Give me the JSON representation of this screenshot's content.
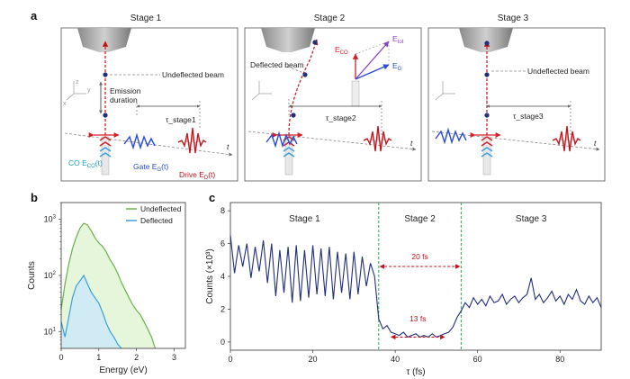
{
  "panel_a": {
    "letter": "a",
    "stages": [
      {
        "title": "Stage 1",
        "tau_label": "τ_stage1"
      },
      {
        "title": "Stage 2",
        "tau_label": "τ_stage2"
      },
      {
        "title": "Stage 3",
        "tau_label": "τ_stage3"
      }
    ],
    "labels": {
      "undeflected_beam": "Undeflected beam",
      "deflected_beam": "Deflected beam",
      "emission_duration_1": "Emission",
      "emission_duration_2": "duration",
      "co_label": "CO E",
      "co_sub": "CO",
      "co_arg": "(t)",
      "gate_label": "Gate E",
      "gate_sub": "G",
      "gate_arg": "(t)",
      "drive_label": "Drive E",
      "drive_sub": "D",
      "drive_arg": "(t)",
      "t": "t",
      "e_co": "E",
      "e_co_sub": "CO",
      "e_tot": "E",
      "e_tot_sub": "tot",
      "e_g": "E",
      "e_g_sub": "G",
      "axis_z": "z",
      "axis_y": "y",
      "axis_x": "x"
    }
  },
  "panel_b": {
    "letter": "b",
    "legend": [
      "Undeflected",
      "Deflected"
    ],
    "xlabel": "Energy (eV)",
    "ylabel": "Counts",
    "xticks": [
      "0",
      "1",
      "2",
      "3"
    ],
    "yticks_base": "10",
    "yticks_exp": [
      "3",
      "2",
      "1"
    ]
  },
  "panel_c": {
    "letter": "c",
    "stage_labels": [
      "Stage 1",
      "Stage 2",
      "Stage 3"
    ],
    "annotation_20": "20 fs",
    "annotation_13": "13 fs",
    "xlabel": "τ (fs)",
    "ylabel": "Counts (×10³)",
    "xticks": [
      "0",
      "20",
      "40",
      "60",
      "80"
    ],
    "yticks": [
      "0",
      "2",
      "4",
      "6",
      "8"
    ]
  },
  "colors": {
    "undeflected": "#6ab04c",
    "undeflected_fill": "#e3f5d6",
    "deflected": "#3aa0d8",
    "deflected_fill": "#cdeaf6",
    "trace": "#1f2f7a",
    "dashed_green": "#2aa85a",
    "annot_red": "#c0141c"
  },
  "chart_data": [
    {
      "type": "area",
      "title": "",
      "xlabel": "Energy (eV)",
      "ylabel": "Counts",
      "xlim": [
        0,
        3.3
      ],
      "ylim": [
        5,
        2000
      ],
      "yscale": "log",
      "legend_position": "top-right",
      "series": [
        {
          "name": "Undeflected",
          "x": [
            0.0,
            0.1,
            0.2,
            0.3,
            0.4,
            0.5,
            0.6,
            0.7,
            0.8,
            0.9,
            1.0,
            1.1,
            1.2,
            1.3,
            1.4,
            1.5,
            1.6,
            1.7,
            1.8,
            1.9,
            2.0,
            2.1,
            2.2,
            2.3,
            2.4,
            2.5
          ],
          "y": [
            25,
            70,
            160,
            300,
            480,
            700,
            850,
            800,
            620,
            470,
            380,
            330,
            260,
            190,
            150,
            110,
            75,
            55,
            40,
            30,
            24,
            20,
            15,
            11,
            8,
            5
          ]
        },
        {
          "name": "Deflected",
          "x": [
            0.0,
            0.1,
            0.2,
            0.3,
            0.4,
            0.5,
            0.6,
            0.7,
            0.8,
            0.9,
            1.0,
            1.1,
            1.2,
            1.3,
            1.4,
            1.5,
            1.6
          ],
          "y": [
            15,
            8,
            18,
            40,
            65,
            80,
            100,
            70,
            50,
            40,
            32,
            22,
            14,
            10,
            8,
            6,
            5
          ]
        }
      ]
    },
    {
      "type": "line",
      "title": "",
      "xlabel": "τ (fs)",
      "ylabel": "Counts (×10³)",
      "xlim": [
        0,
        90
      ],
      "ylim": [
        -0.5,
        8.5
      ],
      "vlines": [
        36,
        56
      ],
      "series": [
        {
          "name": "",
          "x": [
            0,
            1,
            2,
            3,
            4,
            5,
            6,
            7,
            8,
            9,
            10,
            11,
            12,
            13,
            14,
            15,
            16,
            17,
            18,
            19,
            20,
            21,
            22,
            23,
            24,
            25,
            26,
            27,
            28,
            29,
            30,
            31,
            32,
            33,
            34,
            35,
            36,
            37,
            38,
            39,
            40,
            41,
            42,
            43,
            44,
            45,
            46,
            47,
            48,
            49,
            50,
            51,
            52,
            53,
            54,
            55,
            56,
            57,
            58,
            59,
            60,
            61,
            62,
            63,
            64,
            65,
            66,
            67,
            68,
            69,
            70,
            71,
            72,
            73,
            74,
            75,
            76,
            77,
            78,
            79,
            80,
            81,
            82,
            83,
            84,
            85,
            86,
            87,
            88,
            89,
            90
          ],
          "y": [
            6.5,
            4.2,
            5.9,
            4.6,
            6.0,
            3.9,
            5.8,
            4.3,
            6.2,
            3.6,
            6.0,
            2.8,
            5.6,
            3.0,
            5.8,
            2.4,
            5.9,
            2.5,
            5.6,
            2.7,
            5.9,
            2.9,
            5.7,
            2.8,
            5.8,
            2.6,
            5.5,
            3.0,
            5.4,
            2.6,
            5.5,
            2.9,
            5.2,
            3.4,
            4.8,
            4.0,
            1.4,
            0.8,
            1.0,
            0.6,
            0.5,
            0.4,
            0.6,
            0.3,
            0.4,
            0.5,
            0.3,
            0.4,
            0.3,
            0.5,
            0.3,
            0.4,
            0.5,
            0.6,
            0.9,
            1.5,
            1.9,
            2.4,
            2.1,
            2.7,
            2.3,
            2.6,
            2.2,
            2.8,
            2.4,
            2.5,
            2.9,
            2.3,
            2.6,
            2.8,
            2.4,
            2.7,
            2.9,
            3.9,
            2.6,
            2.9,
            2.4,
            2.7,
            3.1,
            2.5,
            2.8,
            2.3,
            2.9,
            2.6,
            3.2,
            2.5,
            2.3,
            2.8,
            2.4,
            2.7,
            2.1
          ]
        }
      ]
    }
  ]
}
